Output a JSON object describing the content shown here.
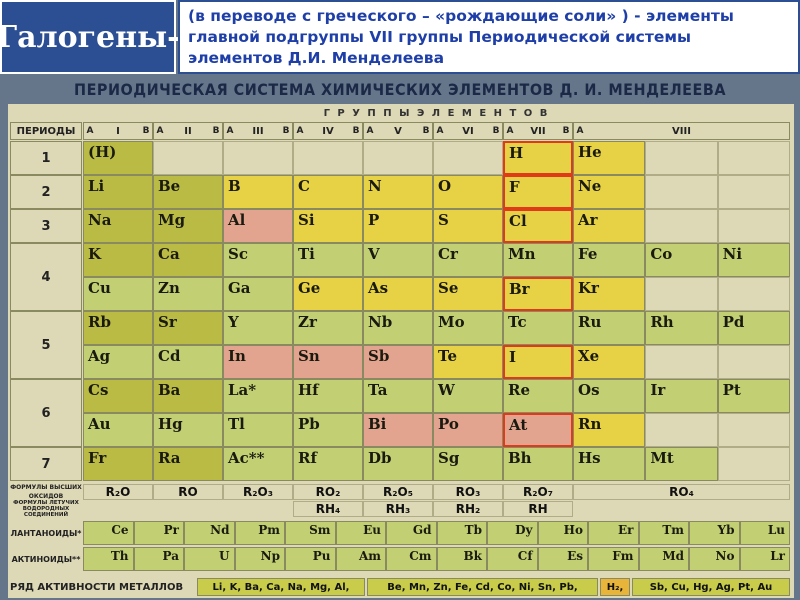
{
  "header": {
    "title": "Галогены-",
    "subtitle": "(в переводе с греческого – «рождающие соли» ) - элементы главной подгруппы VII группы Периодической системы элементов Д.И. Менделеева"
  },
  "table": {
    "title": "ПЕРИОДИЧЕСКАЯ СИСТЕМА ХИМИЧЕСКИХ ЭЛЕМЕНТОВ Д. И. МЕНДЕЛЕЕВА",
    "groups_label": "Г Р У П П Ы   Э Л Е М Е Н Т О В",
    "periods_label": "ПЕРИОДЫ",
    "groups": [
      "I",
      "II",
      "III",
      "IV",
      "V",
      "VI",
      "VII",
      "VIII"
    ],
    "subgroups": [
      "A",
      "B"
    ],
    "colors": {
      "s": "#b9bb45",
      "p": "#e6d244",
      "m": "#e2a48e",
      "d": "#c3cf73",
      "hl": "#e03a1a"
    },
    "periods": [
      {
        "label": "1",
        "rows": [
          [
            {
              "symbol": "(H)",
              "kind": "s"
            },
            null,
            null,
            null,
            null,
            null,
            {
              "symbol": "H",
              "kind": "p",
              "halogen": true
            },
            {
              "symbol": "He",
              "kind": "p"
            },
            null,
            null
          ]
        ]
      },
      {
        "label": "2",
        "rows": [
          [
            {
              "symbol": "Li",
              "kind": "s"
            },
            {
              "symbol": "Be",
              "kind": "s"
            },
            {
              "symbol": "B",
              "kind": "p"
            },
            {
              "symbol": "C",
              "kind": "p"
            },
            {
              "symbol": "N",
              "kind": "p"
            },
            {
              "symbol": "O",
              "kind": "p"
            },
            {
              "symbol": "F",
              "kind": "p",
              "halogen": true
            },
            {
              "symbol": "Ne",
              "kind": "p"
            },
            null,
            null
          ]
        ]
      },
      {
        "label": "3",
        "rows": [
          [
            {
              "symbol": "Na",
              "kind": "s"
            },
            {
              "symbol": "Mg",
              "kind": "s"
            },
            {
              "symbol": "Al",
              "kind": "m"
            },
            {
              "symbol": "Si",
              "kind": "p"
            },
            {
              "symbol": "P",
              "kind": "p"
            },
            {
              "symbol": "S",
              "kind": "p"
            },
            {
              "symbol": "Cl",
              "kind": "p",
              "halogen": true
            },
            {
              "symbol": "Ar",
              "kind": "p"
            },
            null,
            null
          ]
        ]
      },
      {
        "label": "4",
        "rows": [
          [
            {
              "symbol": "K",
              "kind": "s"
            },
            {
              "symbol": "Ca",
              "kind": "s"
            },
            {
              "symbol": "Sc",
              "kind": "d"
            },
            {
              "symbol": "Ti",
              "kind": "d"
            },
            {
              "symbol": "V",
              "kind": "d"
            },
            {
              "symbol": "Cr",
              "kind": "d"
            },
            {
              "symbol": "Mn",
              "kind": "d"
            },
            {
              "symbol": "Fe",
              "kind": "d"
            },
            {
              "symbol": "Co",
              "kind": "d"
            },
            {
              "symbol": "Ni",
              "kind": "d"
            }
          ],
          [
            {
              "symbol": "Cu",
              "kind": "d"
            },
            {
              "symbol": "Zn",
              "kind": "d"
            },
            {
              "symbol": "Ga",
              "kind": "d"
            },
            {
              "symbol": "Ge",
              "kind": "p"
            },
            {
              "symbol": "As",
              "kind": "p"
            },
            {
              "symbol": "Se",
              "kind": "p"
            },
            {
              "symbol": "Br",
              "kind": "p",
              "halogen": true
            },
            {
              "symbol": "Kr",
              "kind": "p"
            },
            null,
            null
          ]
        ]
      },
      {
        "label": "5",
        "rows": [
          [
            {
              "symbol": "Rb",
              "kind": "s"
            },
            {
              "symbol": "Sr",
              "kind": "s"
            },
            {
              "symbol": "Y",
              "kind": "d"
            },
            {
              "symbol": "Zr",
              "kind": "d"
            },
            {
              "symbol": "Nb",
              "kind": "d"
            },
            {
              "symbol": "Mo",
              "kind": "d"
            },
            {
              "symbol": "Tc",
              "kind": "d"
            },
            {
              "symbol": "Ru",
              "kind": "d"
            },
            {
              "symbol": "Rh",
              "kind": "d"
            },
            {
              "symbol": "Pd",
              "kind": "d"
            }
          ],
          [
            {
              "symbol": "Ag",
              "kind": "d"
            },
            {
              "symbol": "Cd",
              "kind": "d"
            },
            {
              "symbol": "In",
              "kind": "m"
            },
            {
              "symbol": "Sn",
              "kind": "m"
            },
            {
              "symbol": "Sb",
              "kind": "m"
            },
            {
              "symbol": "Te",
              "kind": "p"
            },
            {
              "symbol": "I",
              "kind": "p",
              "halogen": true
            },
            {
              "symbol": "Xe",
              "kind": "p"
            },
            null,
            null
          ]
        ]
      },
      {
        "label": "6",
        "rows": [
          [
            {
              "symbol": "Cs",
              "kind": "s"
            },
            {
              "symbol": "Ba",
              "kind": "s"
            },
            {
              "symbol": "La*",
              "kind": "d"
            },
            {
              "symbol": "Hf",
              "kind": "d"
            },
            {
              "symbol": "Ta",
              "kind": "d"
            },
            {
              "symbol": "W",
              "kind": "d"
            },
            {
              "symbol": "Re",
              "kind": "d"
            },
            {
              "symbol": "Os",
              "kind": "d"
            },
            {
              "symbol": "Ir",
              "kind": "d"
            },
            {
              "symbol": "Pt",
              "kind": "d"
            }
          ],
          [
            {
              "symbol": "Au",
              "kind": "d"
            },
            {
              "symbol": "Hg",
              "kind": "d"
            },
            {
              "symbol": "Tl",
              "kind": "d"
            },
            {
              "symbol": "Pb",
              "kind": "d"
            },
            {
              "symbol": "Bi",
              "kind": "m"
            },
            {
              "symbol": "Po",
              "kind": "m"
            },
            {
              "symbol": "At",
              "kind": "m",
              "halogen": true
            },
            {
              "symbol": "Rn",
              "kind": "p"
            },
            null,
            null
          ]
        ]
      },
      {
        "label": "7",
        "rows": [
          [
            {
              "symbol": "Fr",
              "kind": "s"
            },
            {
              "symbol": "Ra",
              "kind": "s"
            },
            {
              "symbol": "Ac**",
              "kind": "d"
            },
            {
              "symbol": "Rf",
              "kind": "d"
            },
            {
              "symbol": "Db",
              "kind": "d"
            },
            {
              "symbol": "Sg",
              "kind": "d"
            },
            {
              "symbol": "Bh",
              "kind": "d"
            },
            {
              "symbol": "Hs",
              "kind": "d"
            },
            {
              "symbol": "Mt",
              "kind": "d"
            },
            null
          ]
        ]
      }
    ],
    "oxides_label": "ФОРМУЛЫ ВЫСШИХ ОКСИДОВ",
    "oxides": [
      "R₂O",
      "RO",
      "R₂O₃",
      "RO₂",
      "R₂O₅",
      "RO₃",
      "R₂O₇",
      "RO₄"
    ],
    "hydrides_label": "ФОРМУЛЫ ЛЕТУЧИХ ВОДОРОДНЫХ СОЕДИНЕНИЙ",
    "hydrides": [
      "RH₄",
      "RH₃",
      "RH₂",
      "RH"
    ],
    "lanthanoids_label": "ЛАНТАНОИДЫ*",
    "lanthanoids": [
      "Ce",
      "Pr",
      "Nd",
      "Pm",
      "Sm",
      "Eu",
      "Gd",
      "Tb",
      "Dy",
      "Ho",
      "Er",
      "Tm",
      "Yb",
      "Lu"
    ],
    "actinoids_label": "АКТИНОИДЫ**",
    "actinoids": [
      "Th",
      "Pa",
      "U",
      "Np",
      "Pu",
      "Am",
      "Cm",
      "Bk",
      "Cf",
      "Es",
      "Fm",
      "Md",
      "No",
      "Lr"
    ],
    "activity_label": "РЯД АКТИВНОСТИ МЕТАЛЛОВ",
    "activity": [
      {
        "text": "Li, K, Ba, Ca, Na, Mg, Al,",
        "color": "#c8cc4a"
      },
      {
        "text": "Be, Mn, Zn, Fe, Cd, Co, Ni, Sn, Pb,",
        "color": "#c8cc4a"
      },
      {
        "text": "H₂,",
        "color": "#e8b43a"
      },
      {
        "text": "Sb, Cu, Hg, Ag, Pt, Au",
        "color": "#c8cc4a"
      }
    ]
  }
}
